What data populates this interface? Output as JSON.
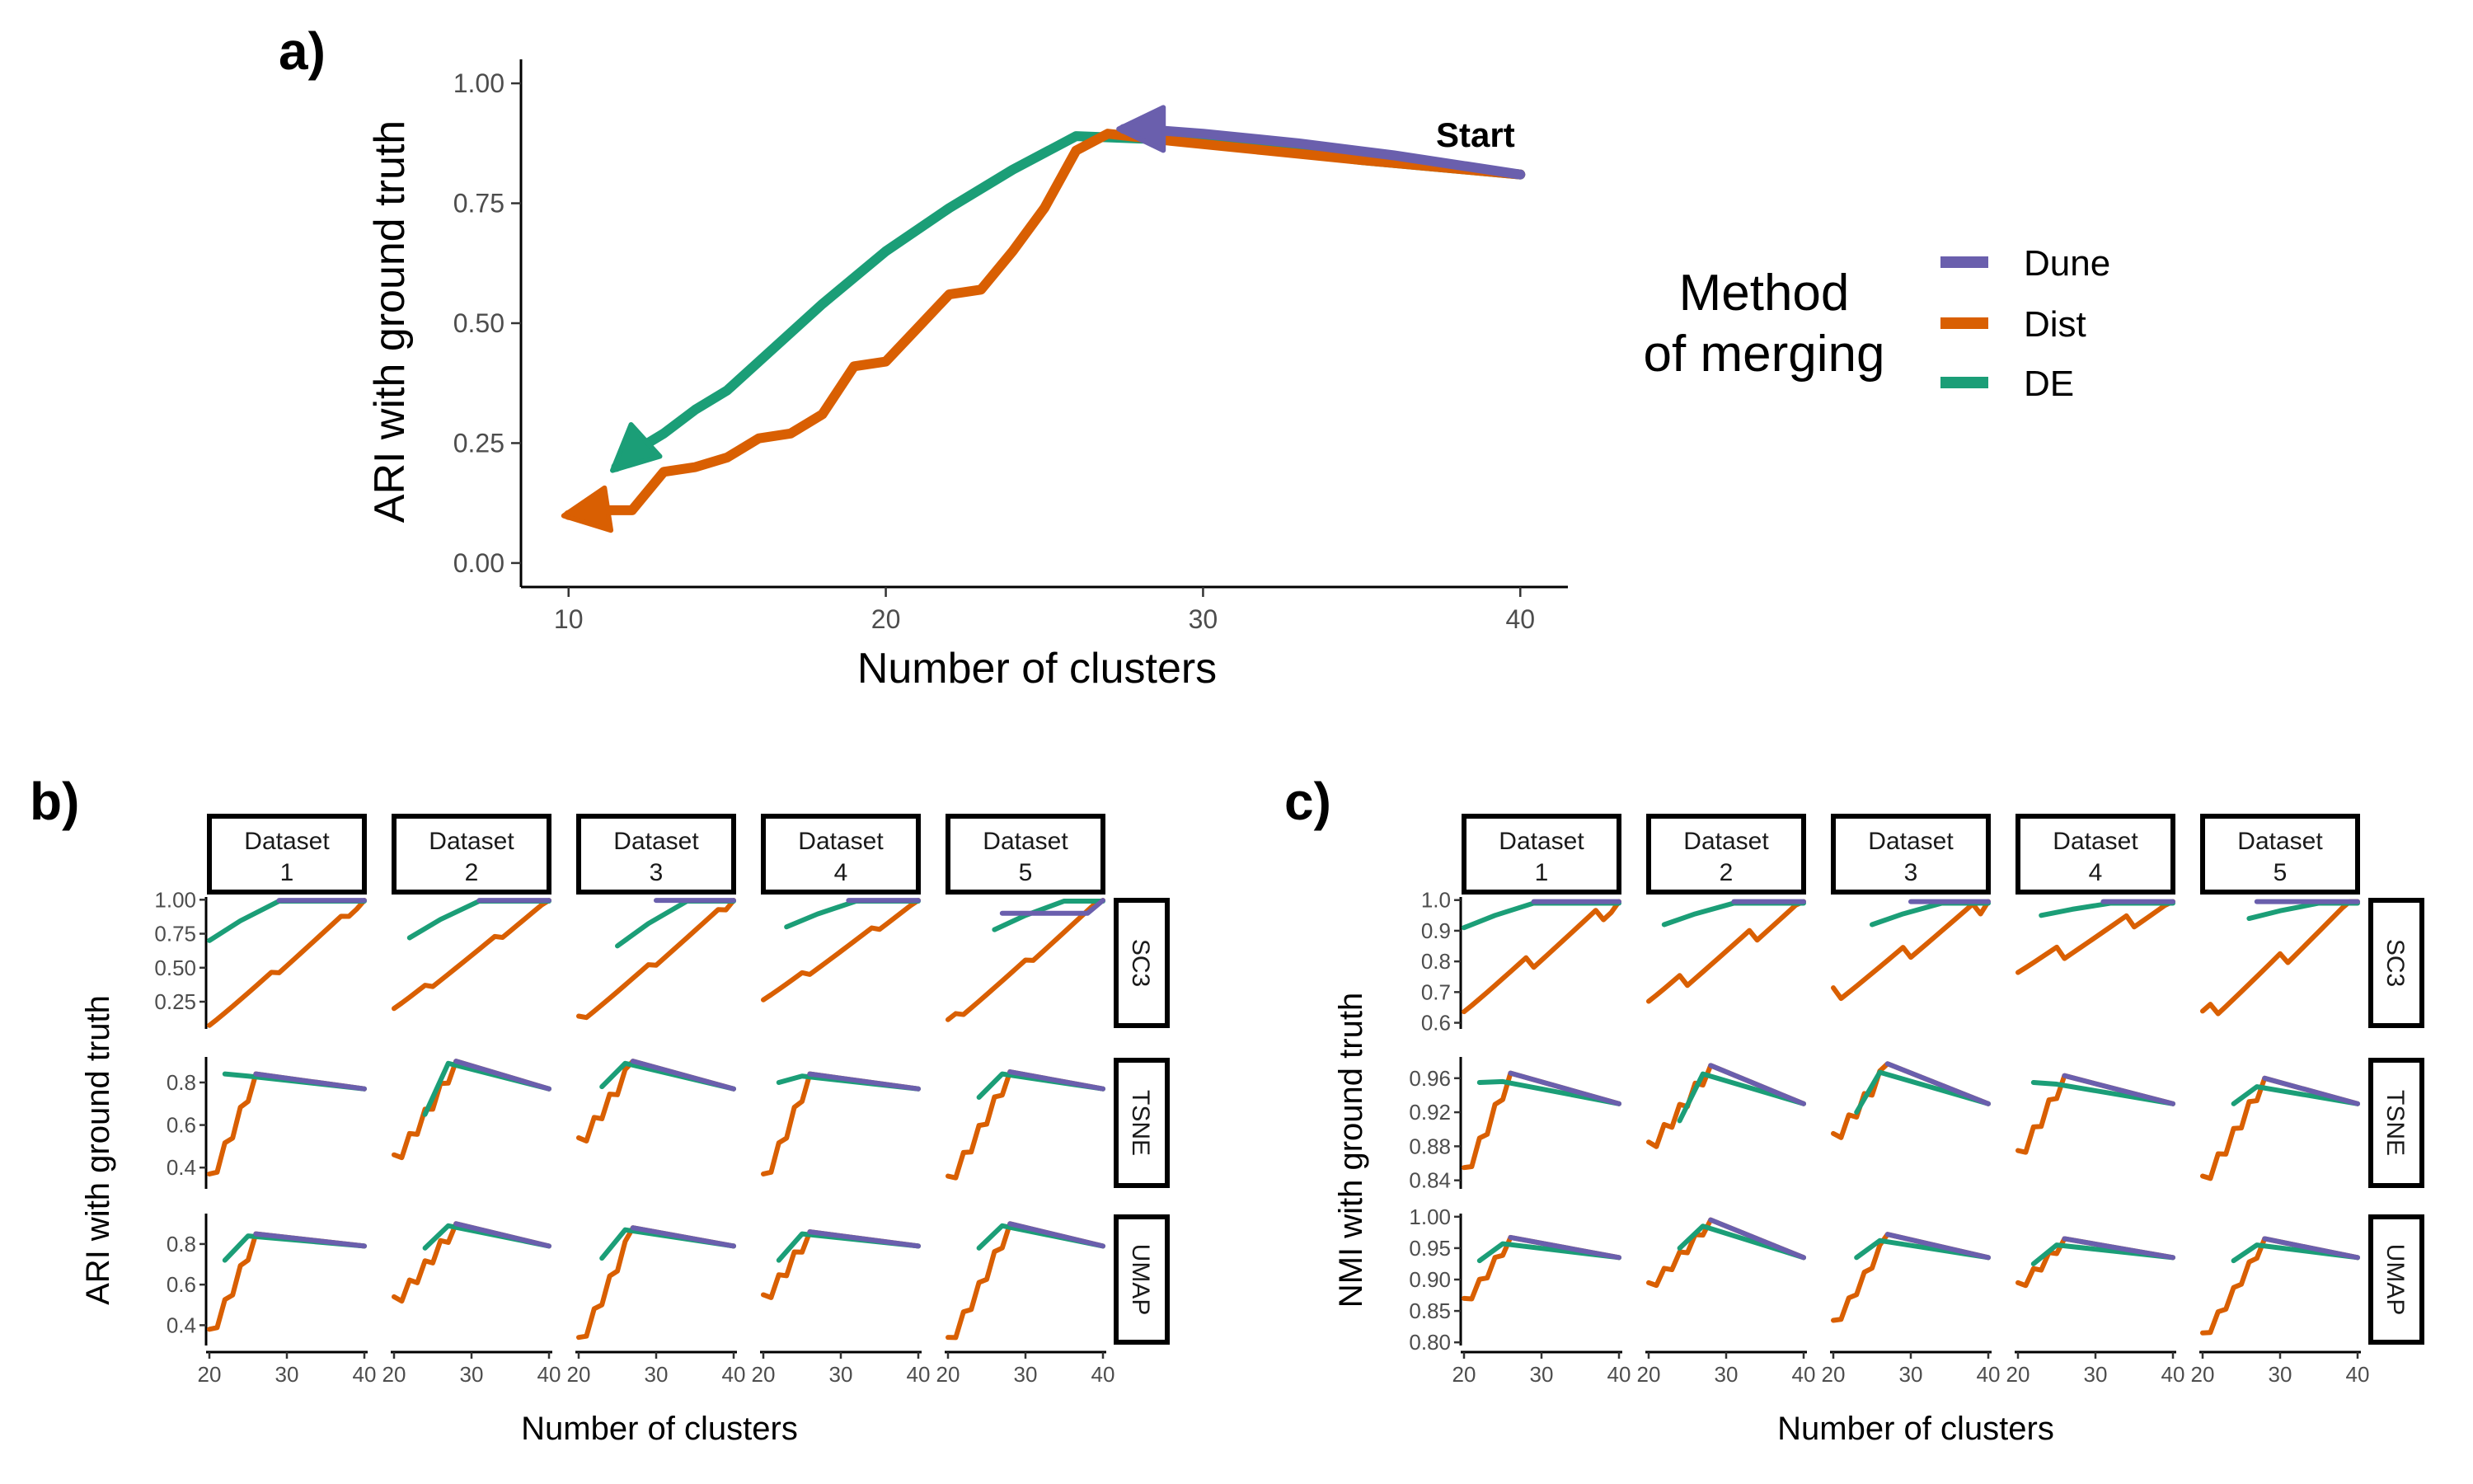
{
  "chart_data": [
    {
      "panel_label": "a)",
      "type": "line",
      "xlabel": "Number of clusters",
      "ylabel": "ARI with ground truth",
      "xlim": [
        8.5,
        41.5
      ],
      "ylim": [
        -0.05,
        1.05
      ],
      "xticks": [
        10,
        20,
        30,
        40
      ],
      "yticks": [
        0.0,
        0.25,
        0.5,
        0.75,
        1.0
      ],
      "ytick_labels": [
        "0.00",
        "0.25",
        "0.50",
        "0.75",
        "1.00"
      ],
      "annotation": "Start",
      "legend": {
        "title": [
          "Method",
          "of merging"
        ],
        "placement": "right"
      },
      "series": [
        {
          "name": "Dune",
          "color": "#6a5fad",
          "arrow": true,
          "x": [
            40,
            36,
            33,
            30,
            28,
            27.5
          ],
          "y": [
            0.81,
            0.85,
            0.875,
            0.895,
            0.905,
            0.905
          ]
        },
        {
          "name": "Dist",
          "color": "#d95f02",
          "arrow": true,
          "x": [
            40,
            35,
            32,
            29,
            27,
            26,
            25,
            24,
            23,
            22,
            21,
            20,
            19,
            18,
            17,
            16,
            15,
            14,
            13,
            12,
            11,
            10
          ],
          "y": [
            0.81,
            0.84,
            0.86,
            0.88,
            0.895,
            0.86,
            0.74,
            0.65,
            0.57,
            0.56,
            0.49,
            0.42,
            0.41,
            0.31,
            0.27,
            0.26,
            0.22,
            0.2,
            0.19,
            0.11,
            0.11,
            0.1
          ]
        },
        {
          "name": "DE",
          "color": "#1b9e77",
          "arrow": true,
          "x": [
            40,
            35,
            30,
            26,
            24,
            22,
            20,
            18,
            16,
            15,
            14,
            13,
            12,
            11.5
          ],
          "y": [
            0.81,
            0.84,
            0.88,
            0.89,
            0.82,
            0.74,
            0.65,
            0.54,
            0.42,
            0.36,
            0.32,
            0.27,
            0.23,
            0.2
          ]
        }
      ]
    },
    {
      "panel_label": "b)",
      "type": "line",
      "xlabel": "Number of clusters",
      "ylabel": "ARI with ground truth",
      "columns": [
        "Dataset\n1",
        "Dataset\n2",
        "Dataset\n3",
        "Dataset\n4",
        "Dataset\n5"
      ],
      "rows": [
        "SC3",
        "TSNE",
        "UMAP"
      ],
      "xlim": [
        20,
        40
      ],
      "xticks": [
        20,
        30,
        40
      ],
      "row_yticks": [
        [
          0.25,
          0.5,
          0.75,
          1.0
        ],
        [
          0.4,
          0.6,
          0.8
        ],
        [
          0.4,
          0.6,
          0.8
        ]
      ],
      "row_ytick_labels": [
        [
          "0.25",
          "0.50",
          "0.75",
          "1.00"
        ],
        [
          "0.4",
          "0.6",
          "0.8"
        ],
        [
          "0.4",
          "0.6",
          "0.8"
        ]
      ],
      "row_ylims": [
        [
          0.05,
          1.02
        ],
        [
          0.3,
          0.92
        ],
        [
          0.3,
          0.95
        ]
      ]
    },
    {
      "panel_label": "c)",
      "type": "line",
      "xlabel": "Number of clusters",
      "ylabel": "NMI with ground truth",
      "columns": [
        "Dataset\n1",
        "Dataset\n2",
        "Dataset\n3",
        "Dataset\n4",
        "Dataset\n5"
      ],
      "rows": [
        "SC3",
        "TSNE",
        "UMAP"
      ],
      "xlim": [
        20,
        40
      ],
      "xticks": [
        20,
        30,
        40
      ],
      "row_yticks": [
        [
          0.6,
          0.7,
          0.8,
          0.9,
          1.0
        ],
        [
          0.84,
          0.88,
          0.92,
          0.96
        ],
        [
          0.8,
          0.85,
          0.9,
          0.95,
          1.0
        ]
      ],
      "row_ytick_labels": [
        [
          "0.6",
          "0.7",
          "0.8",
          "0.9",
          "1.0"
        ],
        [
          "0.84",
          "0.88",
          "0.92",
          "0.96"
        ],
        [
          "0.80",
          "0.85",
          "0.90",
          "0.95",
          "1.00"
        ]
      ],
      "row_ylims": [
        [
          0.58,
          1.01
        ],
        [
          0.83,
          0.985
        ],
        [
          0.795,
          1.005
        ]
      ]
    }
  ]
}
